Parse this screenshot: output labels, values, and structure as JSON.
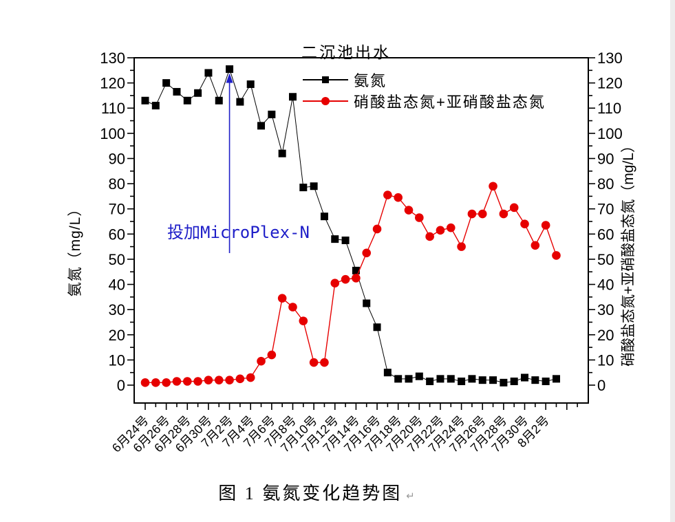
{
  "page": {
    "background": "#ffffff",
    "right_strip_color": "#ededed"
  },
  "chart_data": {
    "type": "line",
    "title": "二沉池出水",
    "left_axis": {
      "label": "氨氮（mg/L）",
      "min": 0,
      "max": 130,
      "tick_step": 10,
      "minor_step": 5
    },
    "right_axis": {
      "label": "硝酸盐态氮+亚硝酸盐态氮（mg/L）",
      "min": 0,
      "max": 130,
      "tick_step": 10,
      "minor_step": 5
    },
    "x_tick_labels": [
      "6月24号",
      "6月26号",
      "6月28号",
      "6月30号",
      "7月2号",
      "7月4号",
      "7月6号",
      "7月8号",
      "7月10号",
      "7月12号",
      "7月14号",
      "7月16号",
      "7月18号",
      "7月20号",
      "7月22号",
      "7月24号",
      "7月26号",
      "7月28号",
      "7月30号",
      "8月2号"
    ],
    "n_points": 40,
    "legend_position": "top-inside",
    "grid": false,
    "series": [
      {
        "name": "氨氮",
        "color": "#000000",
        "marker": "square",
        "values": [
          113,
          111,
          120,
          116.5,
          113,
          116,
          124,
          113,
          125.5,
          112.5,
          119.5,
          103,
          107.5,
          92,
          114.5,
          78.5,
          79,
          67,
          58,
          57.5,
          45.5,
          32.5,
          23,
          5,
          2.5,
          2.5,
          3.5,
          1.5,
          2.5,
          2.5,
          1.5,
          2.5,
          2,
          2,
          1,
          1.5,
          3,
          2,
          1.5,
          2.5
        ]
      },
      {
        "name": "硝酸盐态氮+亚硝酸盐态氮",
        "color": "#e60000",
        "marker": "circle",
        "values": [
          1,
          1,
          1,
          1.5,
          1.5,
          1.5,
          2,
          2,
          2,
          2.5,
          3,
          9.5,
          12,
          34.5,
          31,
          25.5,
          9,
          9,
          40.5,
          42,
          42.5,
          52.5,
          62,
          75.5,
          74.5,
          69.5,
          66.5,
          59,
          61.5,
          62.5,
          55,
          68,
          68,
          79,
          68,
          70.5,
          64,
          55.5,
          63.5,
          51.5
        ]
      }
    ],
    "annotation": {
      "text": "投加MicroPlex-N",
      "color": "#1e1ec8",
      "arrow_points_to_label": "7月2号",
      "arrow_points_to_value": 125.5
    }
  },
  "caption": {
    "text": "图 1 氨氮变化趋势图",
    "return_mark": "↵"
  }
}
